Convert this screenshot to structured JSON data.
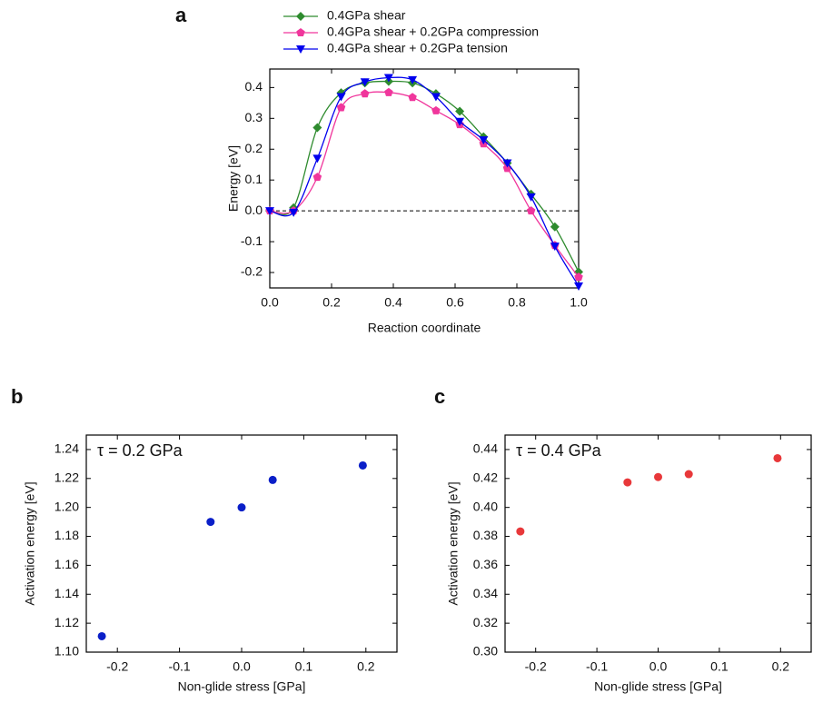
{
  "chart_data": [
    {
      "type": "line",
      "panel_label": "a",
      "xlabel": "Reaction coordinate",
      "ylabel": "Energy [eV]",
      "x": [
        0,
        0.077,
        0.154,
        0.231,
        0.308,
        0.385,
        0.462,
        0.538,
        0.615,
        0.692,
        0.769,
        0.846,
        0.923,
        1.0
      ],
      "series": [
        {
          "name": "0.4GPa shear",
          "color": "#2e8b2e",
          "marker": "diamond",
          "values": [
            0,
            0.01,
            0.27,
            0.383,
            0.415,
            0.42,
            0.415,
            0.38,
            0.323,
            0.24,
            0.155,
            0.054,
            -0.052,
            -0.198
          ]
        },
        {
          "name": "0.4GPa shear + 0.2GPa compression",
          "color": "#f0369c",
          "marker": "pentagon",
          "values": [
            0,
            0.0,
            0.109,
            0.335,
            0.38,
            0.384,
            0.368,
            0.325,
            0.28,
            0.218,
            0.138,
            0.0,
            -0.112,
            -0.215
          ]
        },
        {
          "name": "0.4GPa shear + 0.2GPa tension",
          "color": "#0000ee",
          "marker": "triangle-down",
          "values": [
            0,
            -0.005,
            0.17,
            0.37,
            0.418,
            0.432,
            0.425,
            0.37,
            0.29,
            0.23,
            0.155,
            0.045,
            -0.115,
            -0.244
          ]
        }
      ],
      "xlim": [
        0,
        1
      ],
      "xticks": [
        {
          "value": 0,
          "label": "0.0"
        },
        0.2,
        0.4,
        0.6,
        0.8,
        {
          "value": 1,
          "label": "1.0"
        }
      ],
      "ylim": [
        -0.25,
        0.46
      ],
      "yticks": [
        -0.2,
        -0.1,
        {
          "value": 0,
          "label": "0.0"
        },
        0.1,
        0.2,
        0.3,
        0.4
      ],
      "zero_line": true,
      "legend": "top",
      "smooth": true
    },
    {
      "type": "scatter",
      "panel_label": "b",
      "xlabel": "Non-glide stress [GPa]",
      "ylabel": "Activation energy [eV]",
      "annotation": "τ = 0.2 GPa",
      "color": "#0a1fc8",
      "x": [
        -0.225,
        -0.05,
        0,
        0.05,
        0.195
      ],
      "values": [
        1.111,
        1.19,
        1.2,
        1.219,
        1.229
      ],
      "xlim": [
        -0.25,
        0.25
      ],
      "xticks": [
        -0.2,
        -0.1,
        {
          "value": 0,
          "label": "0.0"
        },
        0.1,
        0.2
      ],
      "ylim": [
        1.1,
        1.25
      ],
      "yticks": [
        {
          "value": 1.1,
          "label": "1.10"
        },
        1.12,
        1.14,
        1.16,
        1.18,
        {
          "value": 1.2,
          "label": "1.20"
        },
        1.22,
        1.24
      ]
    },
    {
      "type": "scatter",
      "panel_label": "c",
      "xlabel": "Non-glide stress [GPa]",
      "ylabel": "Activation energy [eV]",
      "annotation": "τ = 0.4 GPa",
      "color": "#e8383a",
      "x": [
        -0.225,
        -0.05,
        0,
        0.05,
        0.195
      ],
      "values": [
        0.3834,
        0.4173,
        0.421,
        0.423,
        0.434
      ],
      "xlim": [
        -0.25,
        0.25
      ],
      "xticks": [
        -0.2,
        -0.1,
        {
          "value": 0,
          "label": "0.0"
        },
        0.1,
        0.2
      ],
      "ylim": [
        0.3,
        0.45
      ],
      "yticks": [
        {
          "value": 0.3,
          "label": "0.30"
        },
        0.32,
        0.34,
        0.36,
        0.38,
        {
          "value": 0.4,
          "label": "0.40"
        },
        0.42,
        0.44
      ]
    }
  ]
}
